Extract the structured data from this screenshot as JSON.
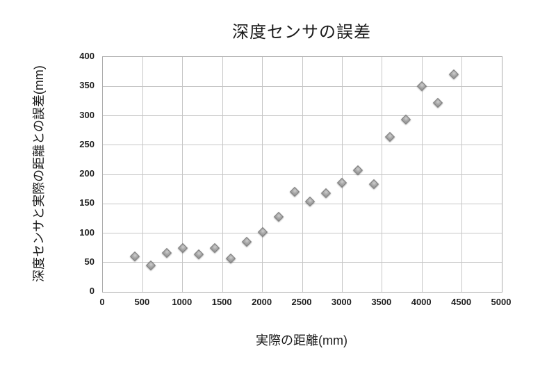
{
  "chart_data": {
    "type": "scatter",
    "title": "深度センサの誤差",
    "xlabel": "実際の距離(mm)",
    "ylabel": "深度センサと実際の距離との誤差(mm)",
    "x": [
      400,
      600,
      800,
      1000,
      1200,
      1400,
      1600,
      1800,
      2000,
      2200,
      2400,
      2600,
      2800,
      3000,
      3200,
      3400,
      3600,
      3800,
      4000,
      4200,
      4400
    ],
    "y": [
      60,
      45,
      66,
      75,
      64,
      74,
      57,
      85,
      102,
      128,
      170,
      154,
      168,
      186,
      207,
      184,
      264,
      294,
      350,
      322,
      371
    ],
    "xlim": [
      0,
      5000
    ],
    "ylim": [
      0,
      400
    ],
    "x_ticks": [
      0,
      500,
      1000,
      1500,
      2000,
      2500,
      3000,
      3500,
      4000,
      4500,
      5000
    ],
    "y_ticks": [
      0,
      50,
      100,
      150,
      200,
      250,
      300,
      350,
      400
    ],
    "grid": true,
    "legend_position": "none",
    "marker": "diamond",
    "marker_fill": "#9e9e9e",
    "marker_border": "#767676",
    "gridline_color": "#c6c6c6",
    "plot_border_color": "#ababab",
    "text_color": "#1a1a1a",
    "background_color": "#ffffff"
  }
}
